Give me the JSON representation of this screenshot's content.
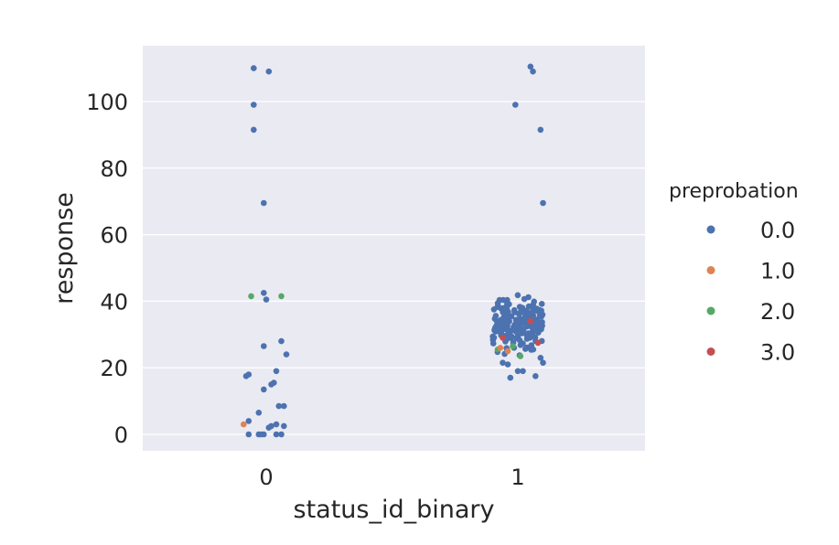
{
  "chart_data": {
    "type": "scatter",
    "subtype": "strip",
    "xlabel": "status_id_binary",
    "ylabel": "response",
    "categories": [
      "0",
      "1"
    ],
    "ylim": [
      -5,
      116
    ],
    "yticks": [
      "0",
      "20",
      "40",
      "60",
      "80",
      "100"
    ],
    "grid": true,
    "background": "#eaeaf2",
    "legend": {
      "title": "preprobation",
      "placement": "right",
      "entries": [
        {
          "label": "0.0",
          "color": "#4c72b0"
        },
        {
          "label": "1.0",
          "color": "#dd8452"
        },
        {
          "label": "2.0",
          "color": "#55a868"
        },
        {
          "label": "3.0",
          "color": "#c44e52"
        }
      ]
    },
    "points": [
      {
        "x": -0.05,
        "y": 110,
        "hue": "0.0"
      },
      {
        "x": 0.01,
        "y": 109,
        "hue": "0.0"
      },
      {
        "x": -0.05,
        "y": 99,
        "hue": "0.0"
      },
      {
        "x": -0.05,
        "y": 91.5,
        "hue": "0.0"
      },
      {
        "x": -0.01,
        "y": 69.5,
        "hue": "0.0"
      },
      {
        "x": -0.06,
        "y": 41.5,
        "hue": "2.0"
      },
      {
        "x": 0.06,
        "y": 41.5,
        "hue": "2.0"
      },
      {
        "x": -0.01,
        "y": 42.5,
        "hue": "0.0"
      },
      {
        "x": 0.0,
        "y": 40.5,
        "hue": "0.0"
      },
      {
        "x": 0.06,
        "y": 28,
        "hue": "0.0"
      },
      {
        "x": -0.01,
        "y": 26.5,
        "hue": "0.0"
      },
      {
        "x": 0.08,
        "y": 24,
        "hue": "0.0"
      },
      {
        "x": 0.04,
        "y": 19,
        "hue": "0.0"
      },
      {
        "x": -0.07,
        "y": 18,
        "hue": "0.0"
      },
      {
        "x": -0.08,
        "y": 17.5,
        "hue": "0.0"
      },
      {
        "x": 0.03,
        "y": 15.5,
        "hue": "0.0"
      },
      {
        "x": 0.02,
        "y": 15,
        "hue": "0.0"
      },
      {
        "x": -0.01,
        "y": 13.5,
        "hue": "0.0"
      },
      {
        "x": 0.05,
        "y": 8.5,
        "hue": "0.0"
      },
      {
        "x": 0.07,
        "y": 8.5,
        "hue": "0.0"
      },
      {
        "x": -0.03,
        "y": 6.5,
        "hue": "0.0"
      },
      {
        "x": -0.07,
        "y": 4,
        "hue": "0.0"
      },
      {
        "x": -0.09,
        "y": 3,
        "hue": "1.0"
      },
      {
        "x": 0.04,
        "y": 3,
        "hue": "0.0"
      },
      {
        "x": 0.02,
        "y": 2.5,
        "hue": "0.0"
      },
      {
        "x": 0.07,
        "y": 2.5,
        "hue": "0.0"
      },
      {
        "x": 0.01,
        "y": 2,
        "hue": "0.0"
      },
      {
        "x": -0.07,
        "y": 0,
        "hue": "0.0"
      },
      {
        "x": -0.03,
        "y": 0,
        "hue": "0.0"
      },
      {
        "x": -0.02,
        "y": 0,
        "hue": "0.0"
      },
      {
        "x": -0.01,
        "y": 0,
        "hue": "0.0"
      },
      {
        "x": 0.04,
        "y": 0,
        "hue": "0.0"
      },
      {
        "x": 0.06,
        "y": 0,
        "hue": "0.0"
      },
      {
        "x": 1.05,
        "y": 110.5,
        "hue": "0.0"
      },
      {
        "x": 1.06,
        "y": 109,
        "hue": "0.0"
      },
      {
        "x": 0.99,
        "y": 99,
        "hue": "0.0"
      },
      {
        "x": 1.09,
        "y": 91.5,
        "hue": "0.0"
      },
      {
        "x": 1.1,
        "y": 69.5,
        "hue": "0.0"
      },
      {
        "x": 0.92,
        "y": 25.5,
        "hue": "2.0"
      },
      {
        "x": 0.93,
        "y": 26,
        "hue": "1.0"
      },
      {
        "x": 0.96,
        "y": 25,
        "hue": "1.0"
      },
      {
        "x": 1.01,
        "y": 23.5,
        "hue": "2.0"
      },
      {
        "x": 0.98,
        "y": 26.5,
        "hue": "2.0"
      },
      {
        "x": 1.08,
        "y": 27.5,
        "hue": "3.0"
      },
      {
        "x": 0.94,
        "y": 29,
        "hue": "3.0"
      },
      {
        "x": 1.05,
        "y": 34,
        "hue": "3.0"
      },
      {
        "x": 0.97,
        "y": 17,
        "hue": "0.0"
      },
      {
        "x": 1.07,
        "y": 17.5,
        "hue": "0.0"
      },
      {
        "x": 1.0,
        "y": 19,
        "hue": "0.0"
      },
      {
        "x": 1.02,
        "y": 19,
        "hue": "0.0"
      },
      {
        "x": 0.94,
        "y": 21.5,
        "hue": "0.0"
      },
      {
        "x": 0.96,
        "y": 21,
        "hue": "0.0"
      },
      {
        "x": 1.1,
        "y": 21.5,
        "hue": "0.0"
      },
      {
        "x": 1.09,
        "y": 23,
        "hue": "0.0"
      }
    ],
    "dense_cluster": {
      "x_center": 1.0,
      "x_jitter": 0.1,
      "y_min": 22,
      "y_max": 44,
      "count": 200,
      "hue": "0.0"
    }
  }
}
